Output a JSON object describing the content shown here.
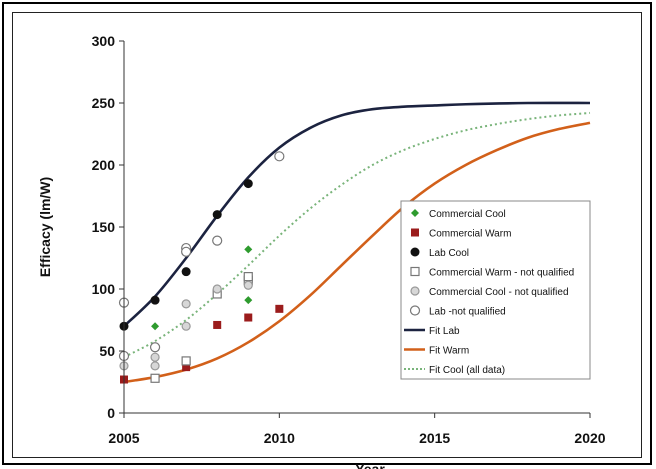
{
  "chart_data": {
    "type": "scatter",
    "title": "",
    "xlabel": "Year",
    "ylabel": "Efficacy (lm/W)",
    "xlim": [
      2005,
      2020
    ],
    "ylim": [
      0,
      300
    ],
    "x_ticks": [
      "2005",
      "2010",
      "2015",
      "2020"
    ],
    "y_ticks": [
      "0",
      "50",
      "100",
      "150",
      "200",
      "250",
      "300"
    ],
    "legend_position": "right",
    "grid": false,
    "series": [
      {
        "name": "Commercial Cool",
        "kind": "points",
        "marker": "diamond",
        "color": "#2e9b2e",
        "points": [
          [
            2006,
            70
          ],
          [
            2009,
            132
          ],
          [
            2009,
            91
          ]
        ]
      },
      {
        "name": "Commercial Warm",
        "kind": "points",
        "marker": "square",
        "color": "#9b1c1c",
        "points": [
          [
            2005,
            27
          ],
          [
            2007,
            37
          ],
          [
            2008,
            71
          ],
          [
            2009,
            77
          ],
          [
            2010,
            84
          ]
        ]
      },
      {
        "name": "Lab Cool",
        "kind": "points",
        "marker": "circle",
        "color": "#111111",
        "points": [
          [
            2005,
            70
          ],
          [
            2006,
            91
          ],
          [
            2007,
            114
          ],
          [
            2008,
            160
          ],
          [
            2009,
            185
          ]
        ]
      },
      {
        "name": "Commercial Warm - not qualified",
        "kind": "points",
        "marker": "open-square",
        "color": "#777777",
        "points": [
          [
            2006,
            28
          ],
          [
            2007,
            42
          ],
          [
            2008,
            96
          ],
          [
            2009,
            107
          ],
          [
            2009,
            110
          ]
        ]
      },
      {
        "name": "Commercial Cool - not qualified",
        "kind": "points",
        "marker": "gray-circle",
        "color": "#999999",
        "points": [
          [
            2005,
            38
          ],
          [
            2006,
            38
          ],
          [
            2006,
            45
          ],
          [
            2007,
            70
          ],
          [
            2007,
            88
          ],
          [
            2008,
            100
          ],
          [
            2009,
            103
          ]
        ]
      },
      {
        "name": "Lab -not qualified",
        "kind": "points",
        "marker": "open-circle",
        "color": "#777777",
        "points": [
          [
            2005,
            89
          ],
          [
            2005,
            46
          ],
          [
            2006,
            53
          ],
          [
            2007,
            133
          ],
          [
            2007,
            130
          ],
          [
            2008,
            139
          ],
          [
            2010,
            207
          ]
        ]
      },
      {
        "name": "Fit Lab",
        "kind": "line",
        "color": "#1c2340",
        "dash": "solid",
        "points": [
          [
            2005,
            70
          ],
          [
            2006,
            94
          ],
          [
            2007,
            125
          ],
          [
            2008,
            159
          ],
          [
            2009,
            190
          ],
          [
            2010,
            214
          ],
          [
            2011,
            230
          ],
          [
            2012,
            240
          ],
          [
            2013,
            245
          ],
          [
            2014,
            247
          ],
          [
            2015,
            248
          ],
          [
            2016,
            249
          ],
          [
            2018,
            250
          ],
          [
            2020,
            250
          ]
        ]
      },
      {
        "name": "Fit Warm",
        "kind": "line",
        "color": "#d2601a",
        "dash": "solid",
        "points": [
          [
            2005,
            25
          ],
          [
            2006,
            29
          ],
          [
            2007,
            35
          ],
          [
            2008,
            44
          ],
          [
            2009,
            57
          ],
          [
            2010,
            74
          ],
          [
            2011,
            95
          ],
          [
            2012,
            119
          ],
          [
            2013,
            143
          ],
          [
            2014,
            166
          ],
          [
            2015,
            185
          ],
          [
            2016,
            200
          ],
          [
            2017,
            212
          ],
          [
            2018,
            222
          ],
          [
            2019,
            229
          ],
          [
            2020,
            234
          ]
        ]
      },
      {
        "name": "Fit Cool (all data)",
        "kind": "line",
        "color": "#79b47a",
        "dash": "dotted",
        "points": [
          [
            2005,
            45
          ],
          [
            2006,
            58
          ],
          [
            2007,
            75
          ],
          [
            2008,
            96
          ],
          [
            2009,
            119
          ],
          [
            2010,
            143
          ],
          [
            2011,
            165
          ],
          [
            2012,
            184
          ],
          [
            2013,
            200
          ],
          [
            2014,
            212
          ],
          [
            2015,
            221
          ],
          [
            2016,
            228
          ],
          [
            2017,
            233
          ],
          [
            2018,
            237
          ],
          [
            2019,
            240
          ],
          [
            2020,
            242
          ]
        ]
      }
    ]
  }
}
